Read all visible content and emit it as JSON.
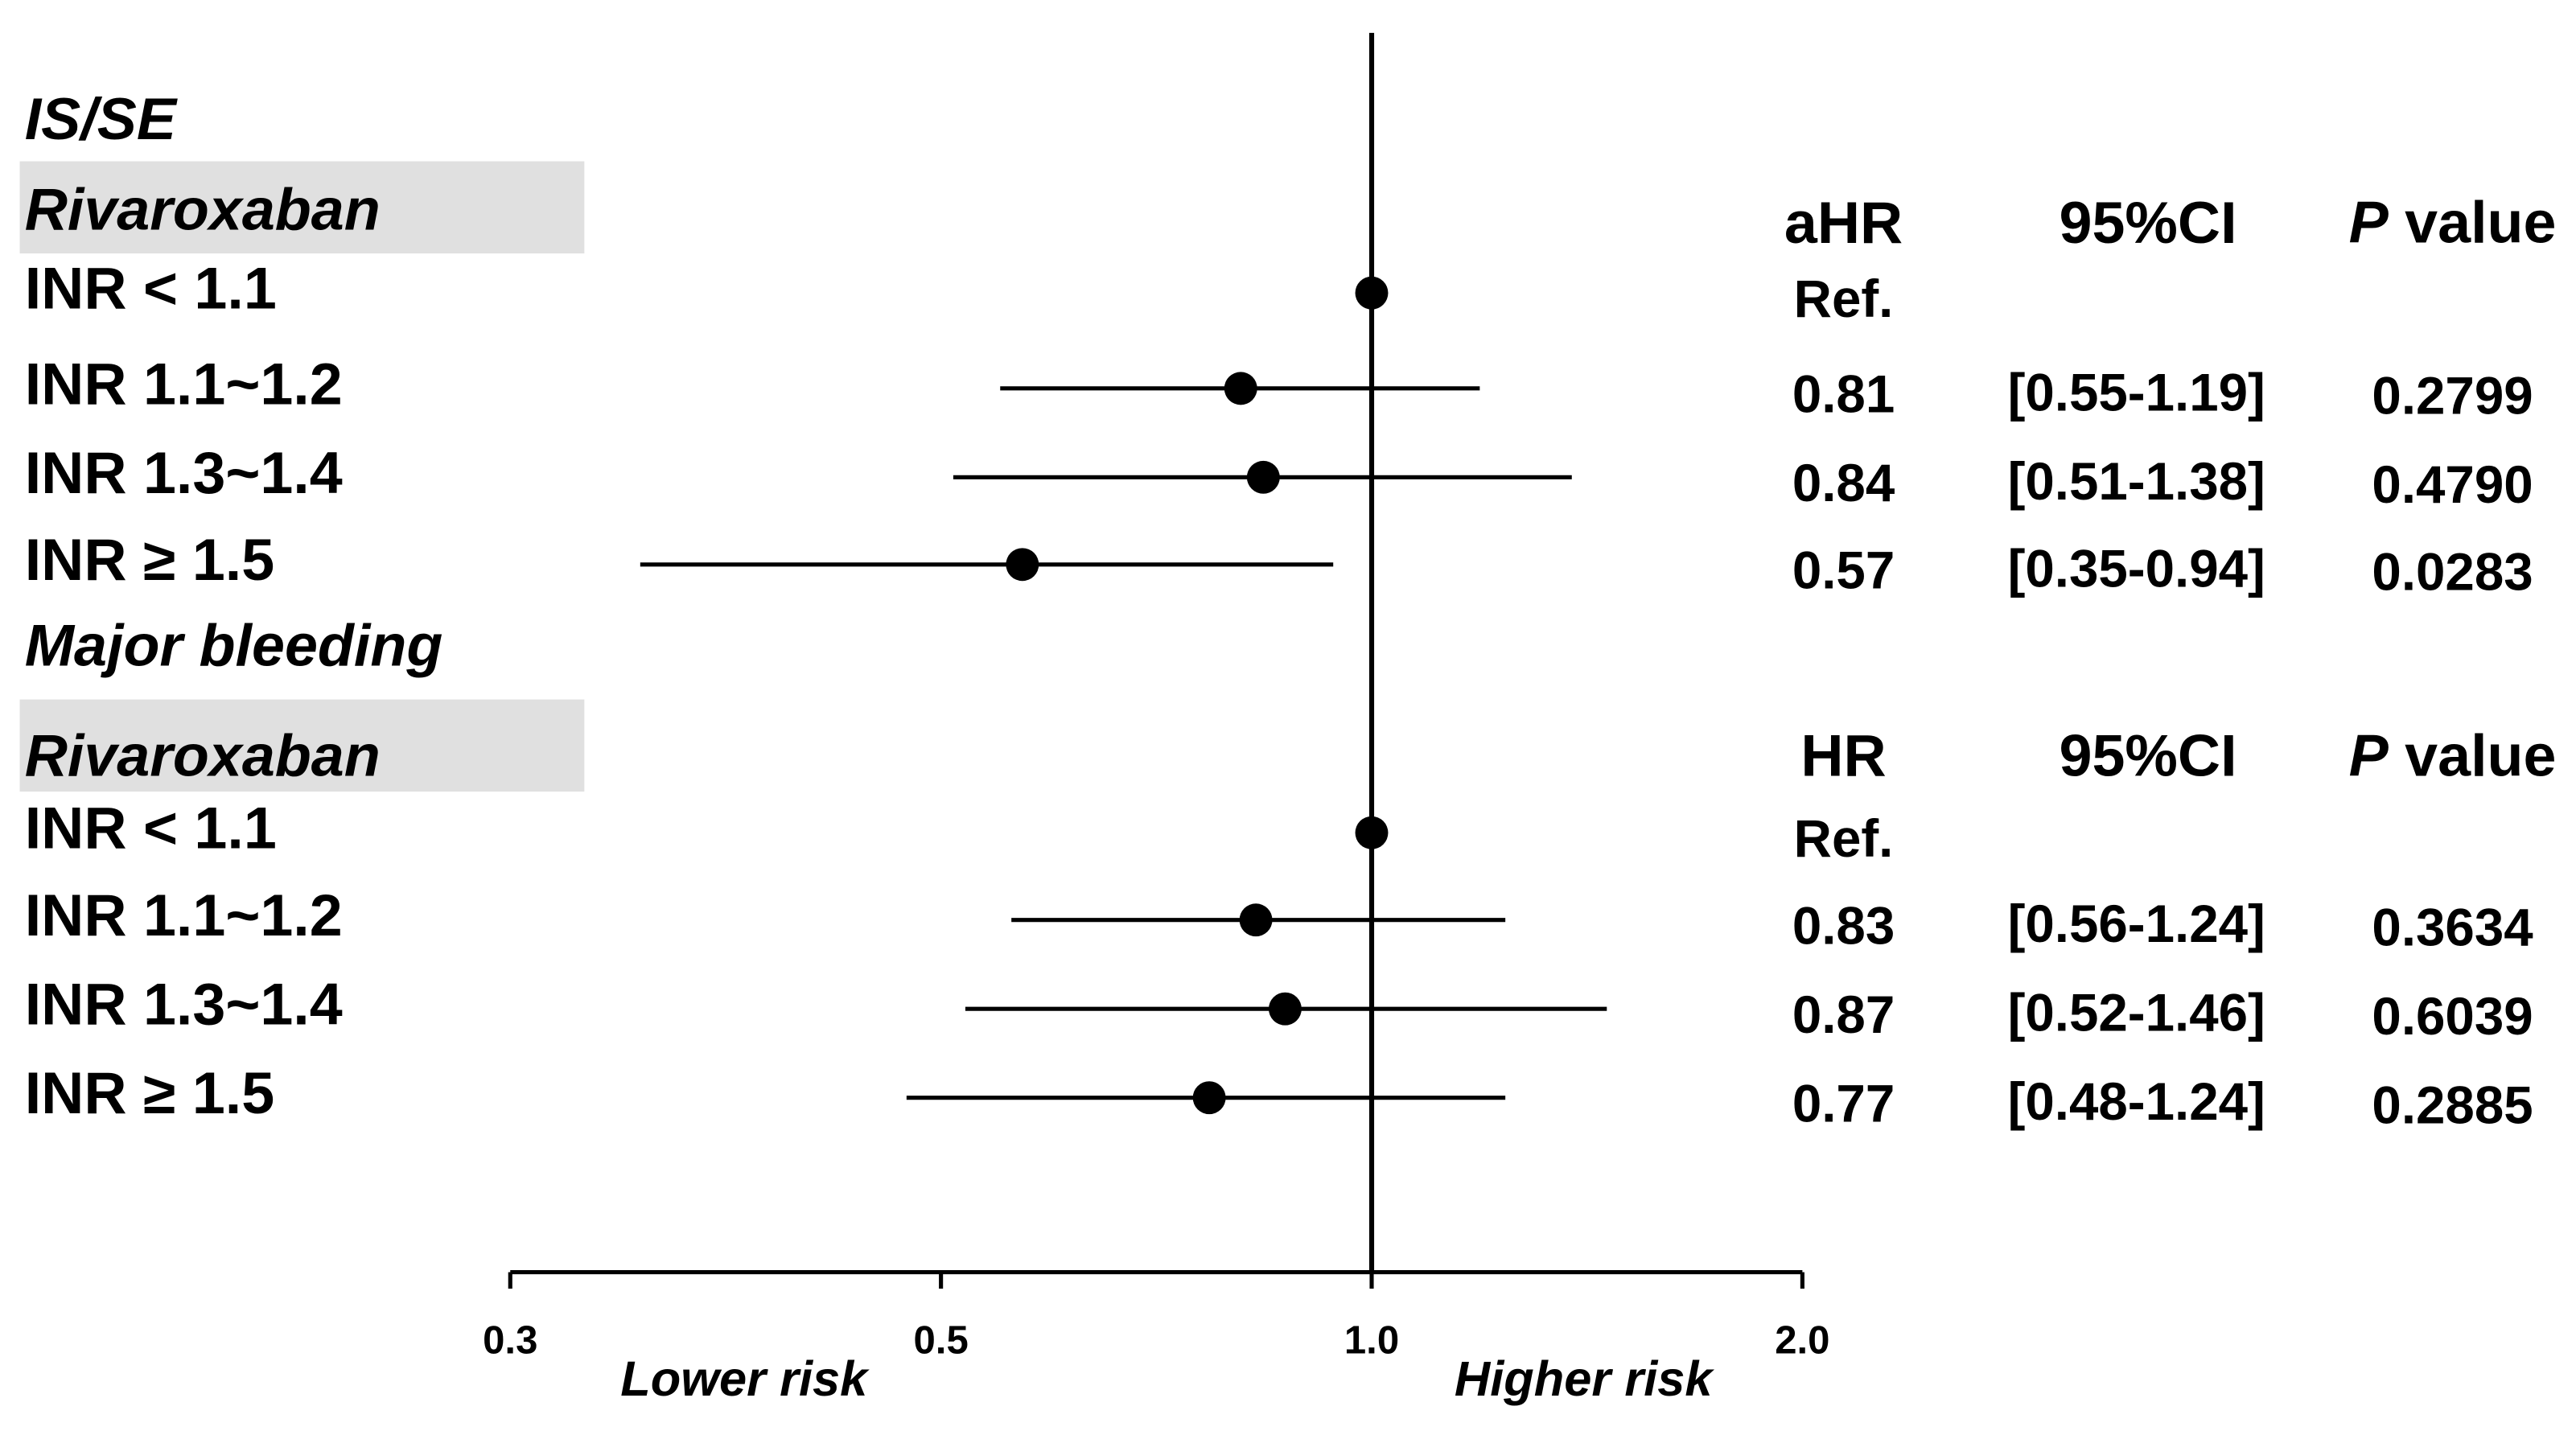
{
  "chart_data": {
    "type": "forest",
    "xscale": "log",
    "xlim": [
      0.3,
      2.0
    ],
    "xticks": [
      0.3,
      0.5,
      {
        "value": 1.0,
        "label": "1.0"
      },
      {
        "value": 2.0,
        "label": "2.0"
      }
    ],
    "reference": 1,
    "annotations": [
      "Lower risk",
      "Higher risk"
    ],
    "color": "#000000",
    "title_color": "#ff0000",
    "groups": [
      {
        "title": "IS/SE",
        "subtitle": "Rivaroxaban",
        "headers": [
          "aHR",
          "95%CI",
          "P",
          "value"
        ],
        "categories": [
          "INR < 1.1",
          "INR 1.1~1.2",
          "INR 1.3~1.4",
          "INR ≥ 1.5"
        ],
        "values": [
          1,
          0.81,
          0.84,
          0.57
        ],
        "value_labels": [
          "Ref.",
          "0.81",
          "0.84",
          "0.57"
        ],
        "ci_low": [
          null,
          0.55,
          0.51,
          0.35
        ],
        "ci_high": [
          null,
          1.19,
          1.38,
          0.94
        ],
        "ci_labels": [
          null,
          "[0.55-1.19]",
          "[0.51-1.38]",
          "[0.35-0.94]"
        ],
        "p_values": [
          null,
          "0.2799",
          "0.4790",
          "0.0283"
        ]
      },
      {
        "title": "Major bleeding",
        "subtitle": "Rivaroxaban",
        "headers": [
          "HR",
          "95%CI",
          "P",
          "value"
        ],
        "categories": [
          "INR < 1.1",
          "INR 1.1~1.2",
          "INR 1.3~1.4",
          "INR ≥ 1.5"
        ],
        "values": [
          1,
          0.83,
          0.87,
          0.77
        ],
        "value_labels": [
          "Ref.",
          "0.83",
          "0.87",
          "0.77"
        ],
        "ci_low": [
          null,
          0.56,
          0.52,
          0.48
        ],
        "ci_high": [
          null,
          1.24,
          1.46,
          1.24
        ],
        "ci_labels": [
          null,
          "[0.56-1.24]",
          "[0.52-1.46]",
          "[0.48-1.24]"
        ],
        "p_values": [
          null,
          "0.3634",
          "0.6039",
          "0.2885"
        ]
      }
    ]
  }
}
